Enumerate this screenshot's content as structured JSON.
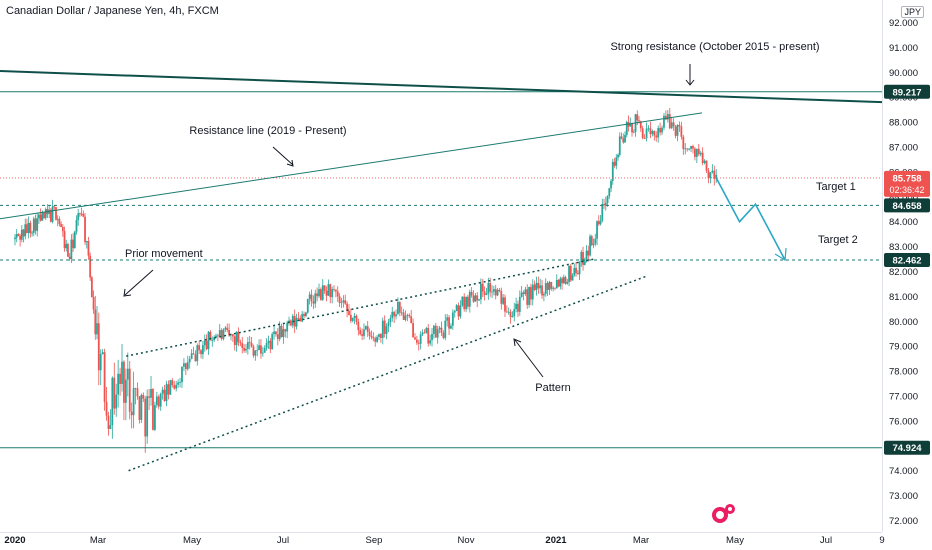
{
  "header": {
    "title": "Canadian Dollar / Japanese Yen, 4h, FXCM",
    "currency": "JPY"
  },
  "colors": {
    "candle_up": "#26a69a",
    "candle_down": "#ef5350",
    "drawing": "#1b7a6e",
    "trend_dark": "#0f4f4a",
    "price_label_bg": "#0f3d38",
    "current_price_bg": "#ef5350",
    "projection": "#2aa6c6",
    "axis_text": "#131722"
  },
  "chart_data": {
    "type": "candlestick",
    "symbol": "CADJPY",
    "timeframe": "4h",
    "x_tick_labels": [
      "2020",
      "Mar",
      "May",
      "Jul",
      "Sep",
      "Nov",
      "2021",
      "Mar",
      "May",
      "Jul",
      "9"
    ],
    "y_tick_labels": [
      "72.000",
      "73.000",
      "74.000",
      "75.000",
      "76.000",
      "77.000",
      "78.000",
      "79.000",
      "80.000",
      "81.000",
      "82.000",
      "83.000",
      "84.000",
      "85.000",
      "86.000",
      "87.000",
      "88.000",
      "89.000",
      "90.000",
      "91.000",
      "92.000"
    ],
    "ylim": [
      72,
      92
    ],
    "price_path_months": [
      0,
      0.5,
      1.0,
      1.3,
      1.6,
      1.9,
      2.2,
      2.5,
      3.0,
      3.5,
      4.0,
      4.5,
      5.0,
      5.5,
      6.0,
      6.3,
      6.6,
      7.0,
      7.5,
      8.0,
      8.5,
      9.0,
      9.5,
      10.0,
      10.5,
      11.0,
      11.5,
      12.0,
      12.5,
      13.0,
      13.3,
      13.6,
      13.9,
      14.2,
      14.5,
      14.8,
      15.0,
      15.2,
      15.4,
      15.6
    ],
    "price_path_values": [
      83.3,
      84.0,
      84.4,
      82.5,
      84.7,
      80.5,
      76.5,
      77.8,
      76.4,
      77.2,
      78.5,
      79.5,
      79.3,
      78.8,
      79.6,
      80.0,
      80.8,
      81.3,
      80.1,
      79.2,
      80.6,
      79.3,
      79.6,
      80.9,
      81.4,
      80.5,
      81.2,
      81.6,
      82.1,
      83.8,
      86.0,
      87.6,
      88.0,
      87.3,
      88.1,
      87.7,
      86.8,
      86.9,
      85.9,
      85.76
    ],
    "current_price": 85.758,
    "countdown": "02:36:42",
    "levels": [
      89.217,
      84.658,
      82.462,
      74.924
    ],
    "annotations": [
      "Strong resistance (October 2015 - present)",
      "Resistance line (2019 - Present)",
      "Prior movement",
      "Pattern",
      "Target 1",
      "Target 2"
    ]
  }
}
